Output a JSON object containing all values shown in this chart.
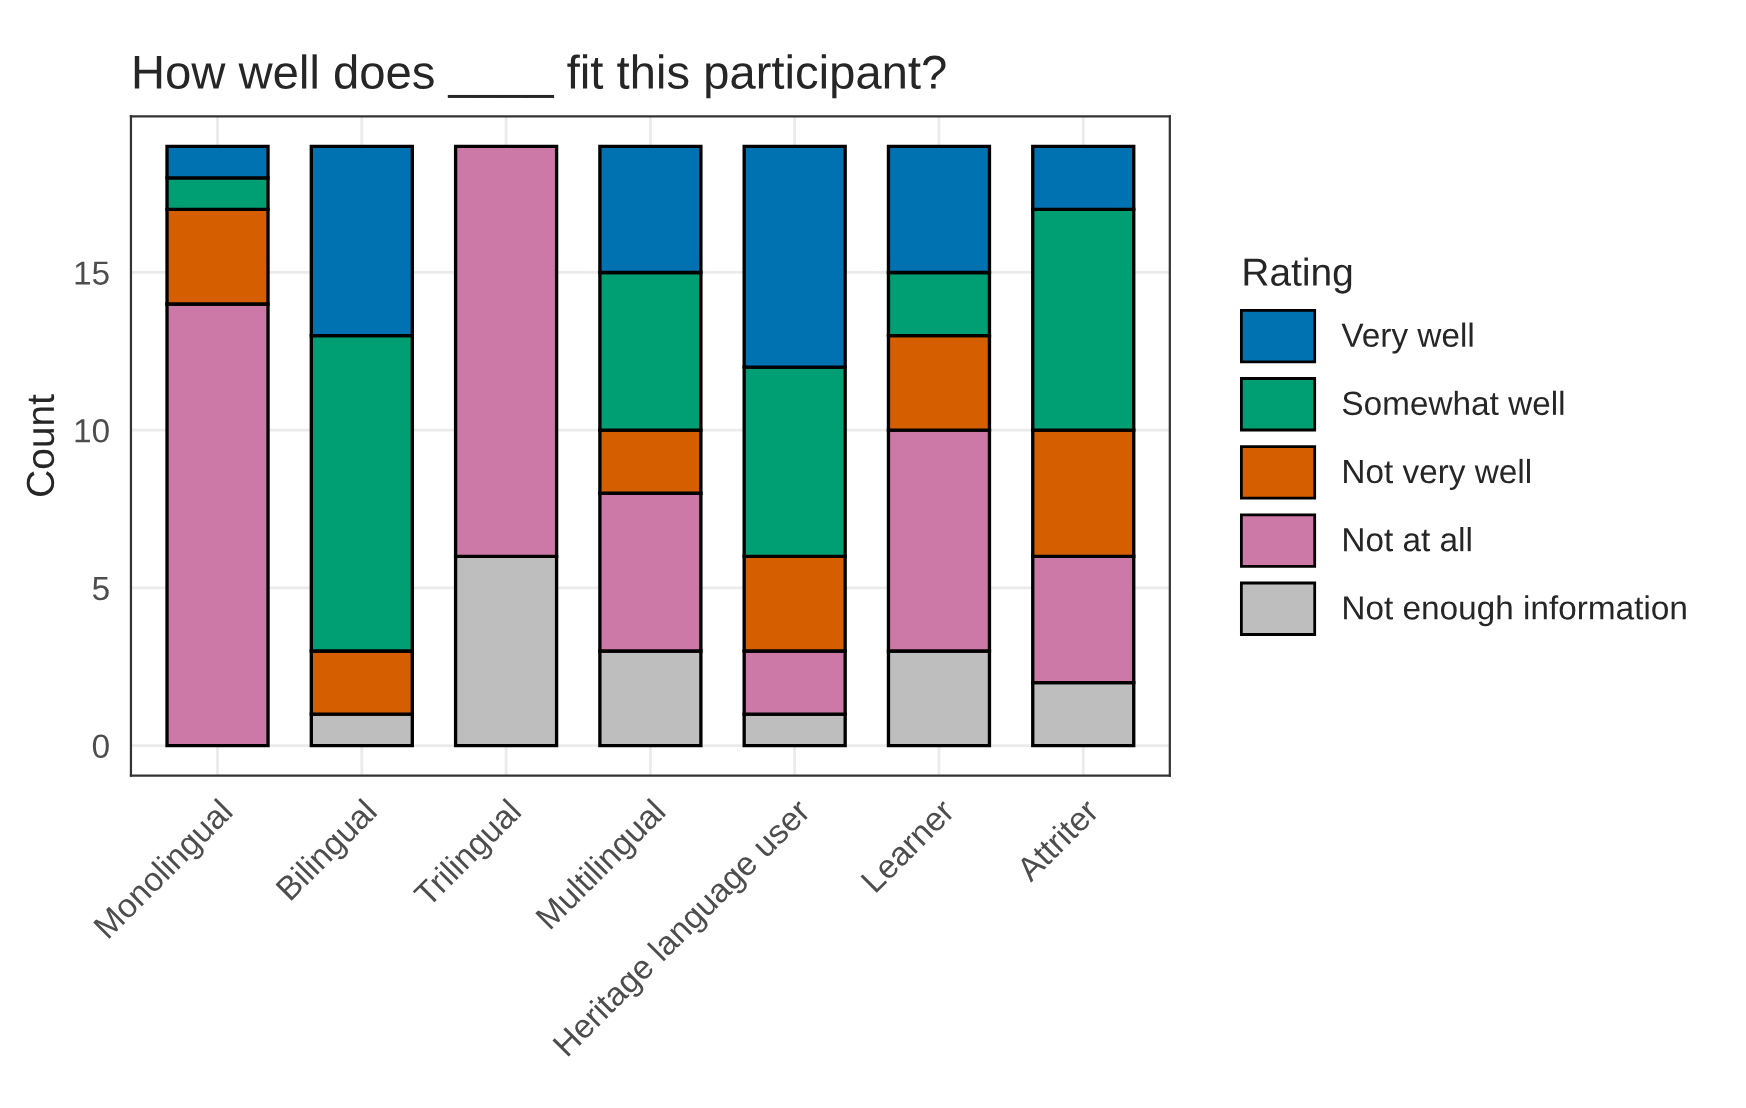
{
  "chart_data": {
    "type": "bar",
    "title": "How well does ____ fit this participant?",
    "ylabel": "Count",
    "legend_title": "Rating",
    "categories": [
      "Monolingual",
      "Bilingual",
      "Trilingual",
      "Multilingual",
      "Heritage language user",
      "Learner",
      "Attriter"
    ],
    "stacked": true,
    "series": [
      {
        "name": "Not enough information",
        "color": "#bebebe",
        "values": [
          0,
          1,
          6,
          3,
          1,
          3,
          2
        ]
      },
      {
        "name": "Not at all",
        "color": "#cc79a7",
        "values": [
          14,
          0,
          13,
          5,
          2,
          7,
          4
        ]
      },
      {
        "name": "Not very well",
        "color": "#d55e00",
        "values": [
          3,
          2,
          0,
          2,
          3,
          3,
          4
        ]
      },
      {
        "name": "Somewhat well",
        "color": "#009e73",
        "values": [
          1,
          10,
          0,
          5,
          6,
          2,
          7
        ]
      },
      {
        "name": "Very well",
        "color": "#0072b2",
        "values": [
          1,
          6,
          0,
          4,
          7,
          4,
          2
        ]
      }
    ],
    "ylim": [
      -0.95,
      19.95
    ],
    "yticks": [
      0,
      5,
      10,
      15
    ],
    "grid": true,
    "legend": "right"
  }
}
